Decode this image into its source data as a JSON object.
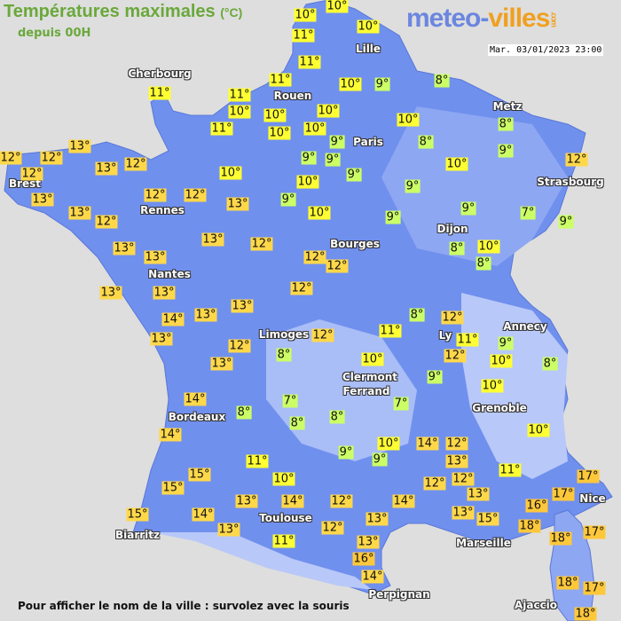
{
  "header": {
    "title": "Températures maximales",
    "unit": "(°C)",
    "subtitle": "depuis 00H"
  },
  "logo": {
    "part1": "meteo-",
    "part2": "villes",
    "part3": ".com"
  },
  "datetime": "Mar. 03/01/2023 23:00",
  "footer": "Pour afficher le nom de la ville : survolez avec la souris",
  "colors": {
    "land": "#7090ee",
    "land_light": "#a9bdf6",
    "sea": "#dedede",
    "cold": "#ccff66",
    "mild": "#ffff33",
    "warm": "#ffd84a",
    "hot": "#ffc83a"
  },
  "cities": [
    "Cherbourg",
    "Rouen",
    "Lille",
    "Paris",
    "Metz",
    "Strasbourg",
    "Brest",
    "Rennes",
    "Nantes",
    "Bourges",
    "Dijon",
    "Limoges",
    "Clermont",
    "Ferrand",
    "Ly",
    "Annecy",
    "Grenoble",
    "Bordeaux",
    "Toulouse",
    "Biarritz",
    "Marseille",
    "Nice",
    "Perpignan",
    "Ajaccio"
  ],
  "temperatures": [
    "10°",
    "10°",
    "10°",
    "11°",
    "11°",
    "11°",
    "11°",
    "11°",
    "10°",
    "11°",
    "10°",
    "10°",
    "10°",
    "10°",
    "10°",
    "9°",
    "8°",
    "10°",
    "8°",
    "9°",
    "9°",
    "9°",
    "9°",
    "10°",
    "8°",
    "9°",
    "12°",
    "13°",
    "12°",
    "12°",
    "12°",
    "13°",
    "12°",
    "10°",
    "10°",
    "9°",
    "9°",
    "12°",
    "12°",
    "13°",
    "13°",
    "13°",
    "12°",
    "10°",
    "9°",
    "9°",
    "7°",
    "9°",
    "13°",
    "13°",
    "12°",
    "13°",
    "12°",
    "12°",
    "8°",
    "10°",
    "8°",
    "13°",
    "13°",
    "12°",
    "14°",
    "13°",
    "13°",
    "13°",
    "8°",
    "12°",
    "12°",
    "11°",
    "11°",
    "9°",
    "12°",
    "10°",
    "8°",
    "12°",
    "13°",
    "8°",
    "10°",
    "9°",
    "10°",
    "14°",
    "7°",
    "8°",
    "8°",
    "8°",
    "7°",
    "14°",
    "10°",
    "10°",
    "9°",
    "9°",
    "14°",
    "12°",
    "13°",
    "11°",
    "11°",
    "15°",
    "15°",
    "10°",
    "12°",
    "12°",
    "17°",
    "17°",
    "13°",
    "13°",
    "14°",
    "12°",
    "14°",
    "13°",
    "16°",
    "15°",
    "13°",
    "15°",
    "14°",
    "13°",
    "12°",
    "18°",
    "17°",
    "18°",
    "11°",
    "13°",
    "16°",
    "14°",
    "18°",
    "17°",
    "18°"
  ]
}
